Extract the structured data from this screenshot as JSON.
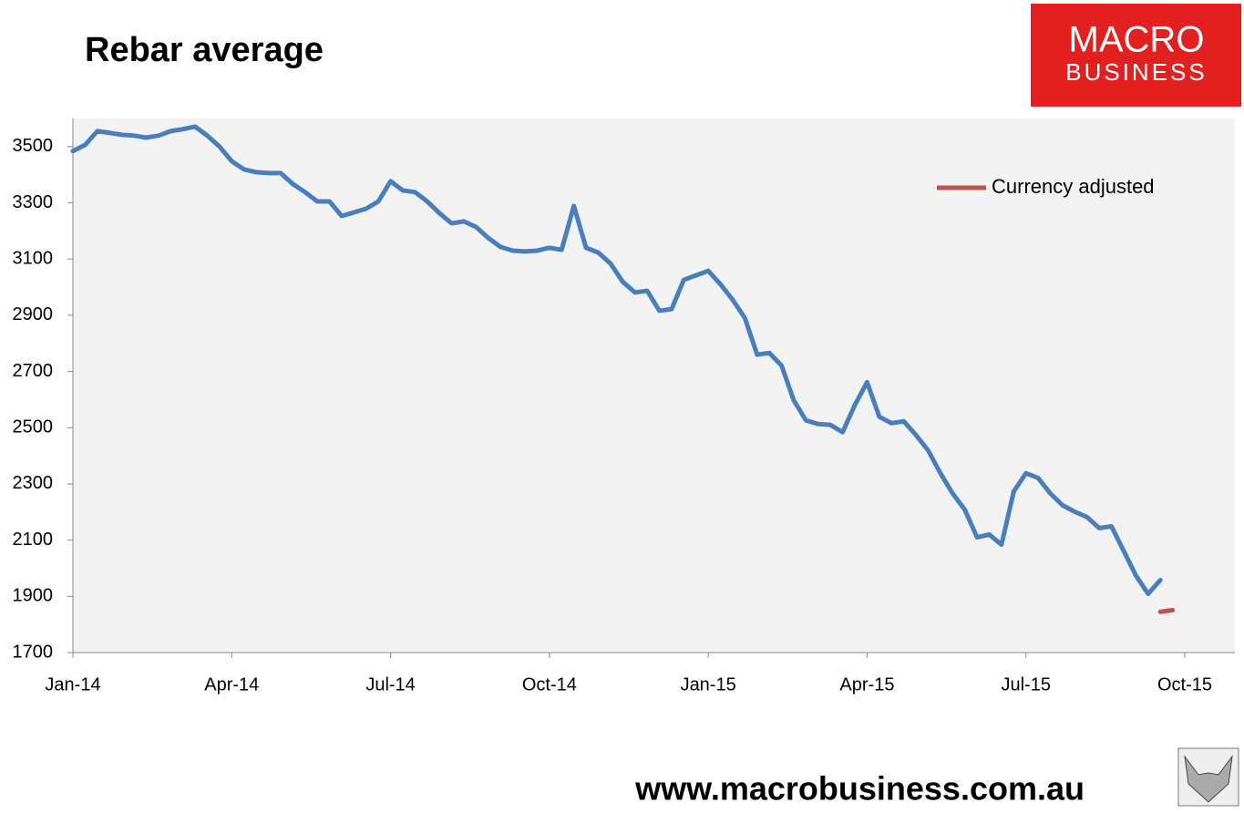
{
  "chart_data": {
    "type": "line",
    "title": "Rebar average",
    "logo": [
      "MACRO",
      "BUSINESS"
    ],
    "footer": "www.macrobusiness.com.au",
    "categories": [
      "Jan-14",
      null,
      null,
      null,
      null,
      null,
      null,
      null,
      null,
      null,
      null,
      null,
      null,
      "Apr-14",
      null,
      null,
      null,
      null,
      null,
      null,
      null,
      null,
      null,
      null,
      null,
      null,
      "Jul-14",
      null,
      null,
      null,
      null,
      null,
      null,
      null,
      null,
      null,
      null,
      null,
      null,
      "Oct-14",
      null,
      null,
      null,
      null,
      null,
      null,
      null,
      null,
      null,
      null,
      null,
      null,
      "Jan-15",
      null,
      null,
      null,
      null,
      null,
      null,
      null,
      null,
      null,
      null,
      null,
      null,
      "Apr-15",
      null,
      null,
      null,
      null,
      null,
      null,
      null,
      null,
      null,
      null,
      null,
      null,
      "Jul-15",
      null,
      null,
      null,
      null,
      null,
      null,
      null,
      null,
      null,
      null,
      null,
      null,
      "Oct-15"
    ],
    "series": [
      {
        "color": "#4a7ebb",
        "values": [
          3484,
          3506,
          3555,
          3549,
          3542,
          3539,
          3532,
          3539,
          3555,
          3562,
          3571,
          3539,
          3500,
          3448,
          3419,
          3409,
          3406,
          3406,
          3367,
          3338,
          3305,
          3305,
          3253,
          3266,
          3279,
          3305,
          3377,
          3344,
          3338,
          3305,
          3263,
          3227,
          3234,
          3214,
          3175,
          3143,
          3130,
          3127,
          3130,
          3140,
          3133,
          3289,
          3140,
          3123,
          3084,
          3019,
          2981,
          2987,
          2916,
          2922,
          3026,
          3042,
          3058,
          3010,
          2955,
          2890,
          2760,
          2766,
          2721,
          2597,
          2526,
          2513,
          2510,
          2484,
          2581,
          2662,
          2539,
          2516,
          2523,
          2474,
          2419,
          2338,
          2266,
          2208,
          2110,
          2120,
          2084,
          2273,
          2338,
          2321,
          2266,
          2224,
          2201,
          2182,
          2143,
          2149,
          2062,
          1974,
          1909,
          1958,
          null,
          null
        ]
      },
      {
        "name": "Currency adjusted",
        "color": "#c0504d",
        "values": [
          null,
          null,
          null,
          null,
          null,
          null,
          null,
          null,
          null,
          null,
          null,
          null,
          null,
          null,
          null,
          null,
          null,
          null,
          null,
          null,
          null,
          null,
          null,
          null,
          null,
          null,
          null,
          null,
          null,
          null,
          null,
          null,
          null,
          null,
          null,
          null,
          null,
          null,
          null,
          null,
          null,
          null,
          null,
          null,
          null,
          null,
          null,
          null,
          null,
          null,
          null,
          null,
          null,
          null,
          null,
          null,
          null,
          null,
          null,
          null,
          null,
          null,
          null,
          null,
          null,
          null,
          null,
          null,
          null,
          null,
          null,
          null,
          null,
          null,
          null,
          null,
          null,
          null,
          null,
          null,
          null,
          null,
          null,
          null,
          null,
          null,
          null,
          null,
          null,
          1845,
          1851,
          null
        ]
      }
    ],
    "ylim": [
      1700,
      3600
    ],
    "yticks": [
      1700,
      1900,
      2100,
      2300,
      2500,
      2700,
      2900,
      3100,
      3300,
      3500
    ],
    "grid": false,
    "legend": "top-right"
  }
}
